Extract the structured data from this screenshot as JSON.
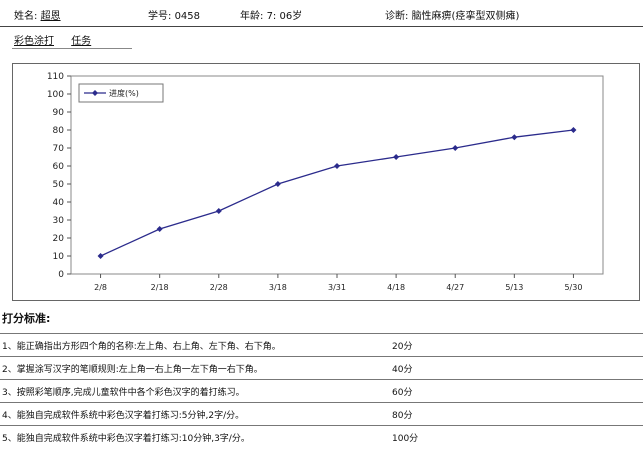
{
  "header": {
    "name_label": "姓名:",
    "name_value": "超恩",
    "id_label": "学号:",
    "id_value": "0458",
    "age_label": "年龄:",
    "age_value": "7: 06岁",
    "diag_label": "诊断:",
    "diag_value": "脑性麻痹(痉挛型双侧瘫)"
  },
  "subnav": {
    "item1": "彩色涂打",
    "item2": "任务"
  },
  "chart_data": {
    "type": "line",
    "categories": [
      "2/8",
      "2/18",
      "2/28",
      "3/18",
      "3/31",
      "4/18",
      "4/27",
      "5/13",
      "5/30"
    ],
    "series": [
      {
        "name": "进度(%)",
        "values": [
          10,
          25,
          35,
          50,
          60,
          65,
          70,
          76,
          80
        ]
      }
    ],
    "ylim": [
      0,
      110
    ],
    "yticks": [
      0,
      10,
      20,
      30,
      40,
      50,
      60,
      70,
      80,
      90,
      100,
      110
    ],
    "legend": "top-left",
    "grid": false,
    "line_color": "#2b2b8c"
  },
  "criteria": {
    "title": "打分标准:",
    "rows": [
      {
        "text": "1、能正确指出方形四个角的名称:左上角、右上角、左下角、右下角。",
        "score": "20分"
      },
      {
        "text": "2、掌握涂写汉字的笔顺规则:左上角一右上角一左下角一右下角。",
        "score": "40分"
      },
      {
        "text": "3、按照彩笔顺序,完成儿童软件中各个彩色汉字的着打练习。",
        "score": "60分"
      },
      {
        "text": "4、能独自完成软件系统中彩色汉字着打练习:5分钟,2字/分。",
        "score": "80分"
      },
      {
        "text": "5、能独自完成软件系统中彩色汉字着打练习:10分钟,3字/分。",
        "score": "100分"
      }
    ]
  }
}
